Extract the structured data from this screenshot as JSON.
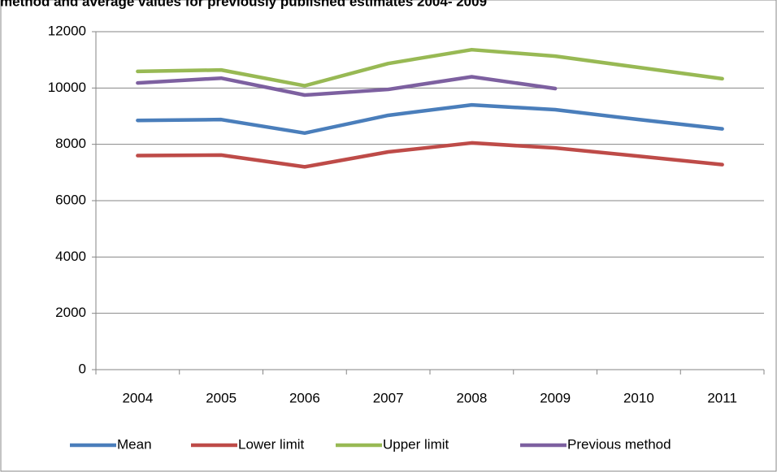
{
  "chart_data": {
    "type": "line",
    "title": "method and average values for previously published estimates 2004- 2009",
    "categories": [
      "2004",
      "2005",
      "2006",
      "2007",
      "2008",
      "2009",
      "2010",
      "2011"
    ],
    "series": [
      {
        "name": "Mean",
        "color": "#4a7ebb",
        "values": [
          8850,
          8880,
          8400,
          9030,
          9400,
          9230,
          8880,
          8550
        ]
      },
      {
        "name": "Lower limit",
        "color": "#be4b48",
        "values": [
          7600,
          7620,
          7200,
          7730,
          8050,
          7870,
          7580,
          7280
        ]
      },
      {
        "name": "Upper limit",
        "color": "#98b954",
        "values": [
          10590,
          10640,
          10080,
          10870,
          11360,
          11130,
          10730,
          10330
        ]
      },
      {
        "name": "Previous method",
        "color": "#7d60a0",
        "values": [
          10180,
          10350,
          9750,
          9950,
          10400,
          9980,
          null,
          null
        ]
      }
    ],
    "ylim": [
      0,
      12000
    ],
    "yticks": [
      0,
      2000,
      4000,
      6000,
      8000,
      10000,
      12000
    ],
    "grid": true,
    "legend": "bottom"
  }
}
